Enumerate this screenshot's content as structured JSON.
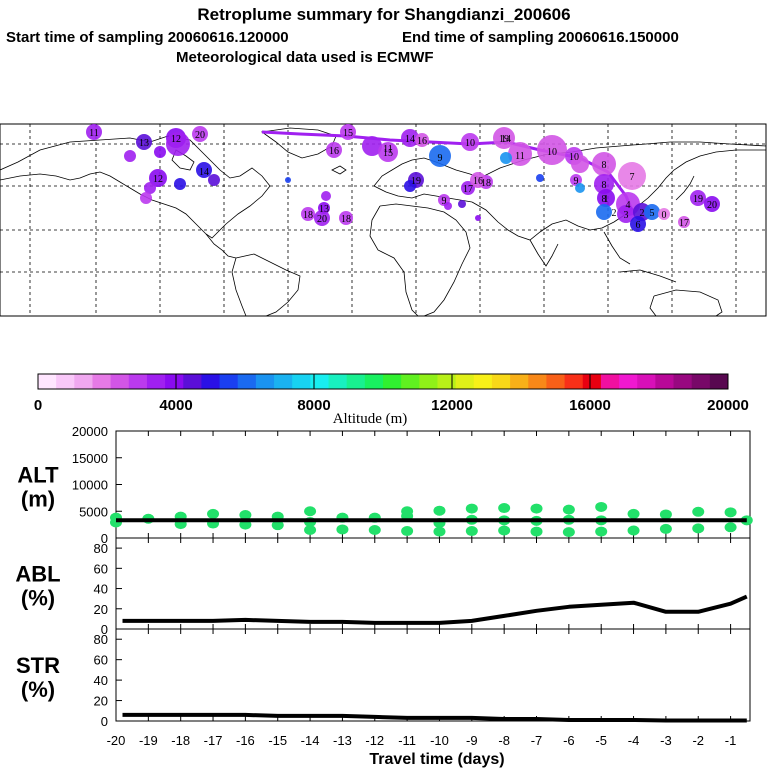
{
  "header": {
    "title": "Retroplume summary for Shangdianzi_200606",
    "start_label": "Start time of sampling 20060616.120000",
    "end_label": "End time of sampling 20060616.150000",
    "met_label": "Meteorological data used is ECMWF"
  },
  "colorbar": {
    "colors": [
      "#ffe6ff",
      "#f9c8f9",
      "#f0a8f0",
      "#e67ae6",
      "#d255e6",
      "#bb3aee",
      "#a020f0",
      "#8a0bf0",
      "#5b0fd8",
      "#2a10e6",
      "#1a3ff0",
      "#1a6af0",
      "#1a93f0",
      "#1ab2f0",
      "#18d2f2",
      "#18eef0",
      "#18f0c0",
      "#18f090",
      "#18f060",
      "#30f030",
      "#60f020",
      "#90f018",
      "#b8f018",
      "#e0f018",
      "#f8f018",
      "#f8d818",
      "#f8b018",
      "#f88818",
      "#f86018",
      "#f83018",
      "#e80010",
      "#f010a0",
      "#f018d0",
      "#d810b8",
      "#b80898",
      "#980880",
      "#780868",
      "#580850"
    ],
    "tick_labels": [
      "0",
      "4000",
      "8000",
      "12000",
      "16000",
      "20000"
    ],
    "tick_values": [
      0,
      4000,
      8000,
      12000,
      16000,
      20000
    ],
    "axis_label": "Altitude  (m)"
  },
  "map": {
    "labels": [
      "11",
      "13",
      "12",
      "20",
      "15",
      "16",
      "15",
      "14",
      "19",
      "11",
      "9",
      "14",
      "11",
      "10",
      "10",
      "8",
      "7",
      "12",
      "14",
      "19",
      "8",
      "9",
      "8",
      "17",
      "18",
      "16",
      "9",
      "3",
      "2",
      "4",
      "5",
      "6",
      "13",
      "18",
      "10",
      "20",
      "18",
      "19",
      "20",
      "17",
      "16",
      "0",
      "1",
      "2"
    ]
  },
  "chart_data": [
    {
      "type": "line",
      "panel": "ALT",
      "ylabel": "ALT\n(m)",
      "ylabel_lines": [
        "ALT",
        "(m)"
      ],
      "ylim": [
        0,
        20000
      ],
      "yticks": [
        0,
        5000,
        10000,
        15000,
        20000
      ],
      "ytick_labels": [
        "0",
        "5000",
        "10000",
        "15000",
        "20000"
      ],
      "xlim": [
        -20,
        -0.4
      ],
      "x": [
        -20,
        -19,
        -18,
        -17,
        -16,
        -15,
        -14,
        -13,
        -12,
        -11,
        -10,
        -9,
        -8,
        -7,
        -6,
        -5,
        -4,
        -3,
        -2,
        -1,
        -0.5
      ],
      "series": [
        {
          "name": "Median altitude",
          "color": "#000000",
          "values": [
            3300,
            3300,
            3300,
            3300,
            3300,
            3300,
            3300,
            3300,
            3300,
            3300,
            3300,
            3300,
            3300,
            3300,
            3300,
            3300,
            3300,
            3300,
            3300,
            3300,
            3300
          ]
        }
      ],
      "scatter": {
        "color": "#22e06a",
        "x": [
          -20,
          -20,
          -19,
          -18,
          -18,
          -17,
          -17,
          -16,
          -16,
          -15,
          -15,
          -14,
          -14,
          -14,
          -13,
          -13,
          -12,
          -12,
          -11,
          -11,
          -11,
          -10,
          -10,
          -10,
          -9,
          -9,
          -9,
          -8,
          -8,
          -8,
          -7,
          -7,
          -7,
          -6,
          -6,
          -6,
          -5,
          -5,
          -5,
          -4,
          -4,
          -3,
          -3,
          -2,
          -2,
          -1,
          -1,
          -0.5
        ],
        "y": [
          2900,
          3800,
          3600,
          2600,
          4000,
          2700,
          4500,
          2500,
          4300,
          2400,
          4000,
          1500,
          3000,
          5000,
          1600,
          3800,
          1500,
          3800,
          1300,
          4100,
          5000,
          1200,
          2800,
          5100,
          1300,
          3400,
          5500,
          1400,
          3300,
          5600,
          1200,
          3200,
          5500,
          1100,
          3400,
          5300,
          1200,
          3300,
          5800,
          1400,
          4500,
          1700,
          4400,
          1800,
          4900,
          2000,
          4800,
          3300
        ]
      }
    },
    {
      "type": "line",
      "panel": "ABL",
      "ylabel": "ABL\n(%)",
      "ylabel_lines": [
        "ABL",
        "(%)"
      ],
      "ylim": [
        0,
        90
      ],
      "yticks": [
        0,
        20,
        40,
        60,
        80
      ],
      "ytick_labels": [
        "0",
        "20",
        "40",
        "60",
        "80"
      ],
      "xlim": [
        -20,
        -0.4
      ],
      "x": [
        -19.8,
        -19,
        -18,
        -17,
        -16,
        -15,
        -14,
        -13,
        -12,
        -11,
        -10,
        -9,
        -8,
        -7,
        -6,
        -5,
        -4,
        -3,
        -2,
        -1,
        -0.5
      ],
      "series": [
        {
          "name": "ABL fraction",
          "color": "#000000",
          "values": [
            8,
            8,
            8,
            8,
            9,
            8,
            7,
            7,
            6,
            6,
            6,
            8,
            13,
            18,
            22,
            24,
            26,
            17,
            17,
            25,
            32
          ]
        }
      ]
    },
    {
      "type": "line",
      "panel": "STR",
      "ylabel": "STR\n(%)",
      "ylabel_lines": [
        "STR",
        "(%)"
      ],
      "ylim": [
        0,
        90
      ],
      "yticks": [
        0,
        20,
        40,
        60,
        80
      ],
      "ytick_labels": [
        "0",
        "20",
        "40",
        "60",
        "80"
      ],
      "xlim": [
        -20,
        -0.4
      ],
      "x": [
        -19.8,
        -19,
        -18,
        -17,
        -16,
        -15,
        -14,
        -13,
        -12,
        -11,
        -10,
        -9,
        -8,
        -7,
        -6,
        -5,
        -4,
        -3,
        -2,
        -1,
        -0.5
      ],
      "xlabel": "Travel time (days)",
      "xticks": [
        -20,
        -19,
        -18,
        -17,
        -16,
        -15,
        -14,
        -13,
        -12,
        -11,
        -10,
        -9,
        -8,
        -7,
        -6,
        -5,
        -4,
        -3,
        -2,
        -1
      ],
      "xtick_labels": [
        "-20",
        "-19",
        "-18",
        "-17",
        "-16",
        "-15",
        "-14",
        "-13",
        "-12",
        "-11",
        "-10",
        "-9",
        "-8",
        "-7",
        "-6",
        "-5",
        "-4",
        "-3",
        "-2",
        "-1"
      ],
      "series": [
        {
          "name": "Stratospheric fraction",
          "color": "#000000",
          "values": [
            6,
            6,
            6,
            6,
            6,
            5,
            5,
            5,
            4,
            3,
            3,
            3,
            2,
            2,
            1,
            1,
            1,
            0.5,
            0.5,
            0.5,
            0.5
          ]
        }
      ]
    }
  ]
}
